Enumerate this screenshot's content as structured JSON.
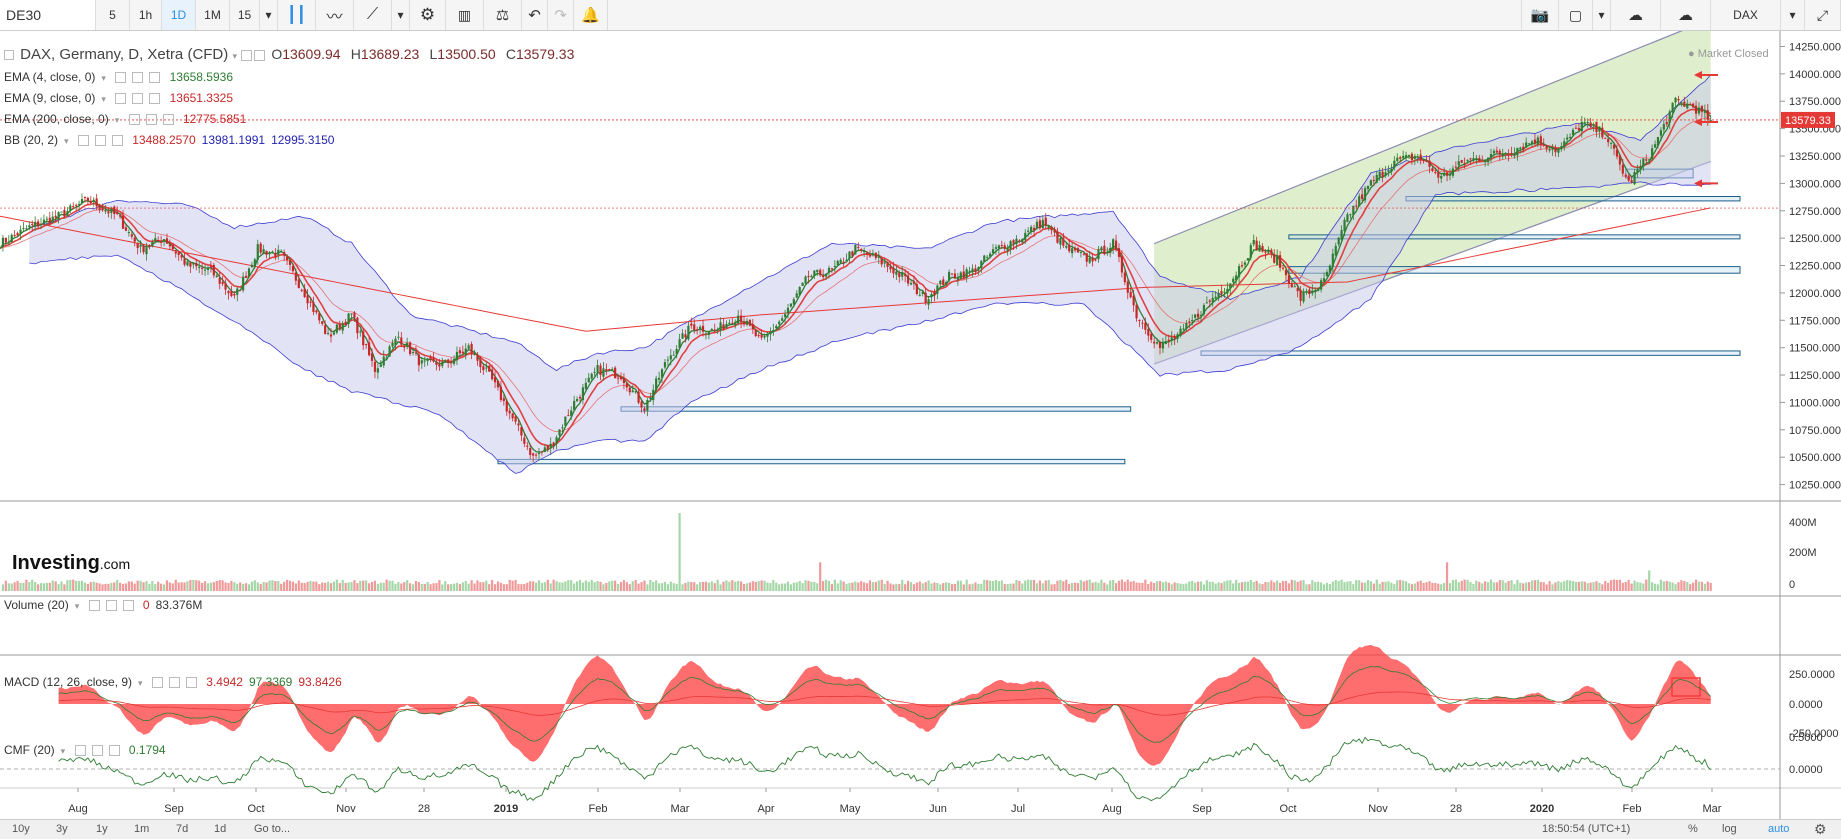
{
  "toolbar": {
    "symbol": "DE30",
    "intervals": [
      "5",
      "1h",
      "1D",
      "1M",
      "15"
    ],
    "active_interval": "1D",
    "right_symbol": "DAX"
  },
  "legend": {
    "main": {
      "name": "DAX, Germany, D, Xetra (CFD)",
      "open": "13609.94",
      "high": "13689.23",
      "low": "13500.50",
      "close": "13579.33",
      "o_label": "O",
      "h_label": "H",
      "l_label": "L",
      "c_label": "C"
    },
    "ema4": {
      "label": "EMA (4, close, 0)",
      "value": "13658.5936"
    },
    "ema9": {
      "label": "EMA (9, close, 0)",
      "value": "13651.3325"
    },
    "ema200": {
      "label": "EMA (200, close, 0)",
      "value": "12775.5851"
    },
    "bb": {
      "label": "BB (20, 2)",
      "mid": "13488.2570",
      "upper": "13981.1991",
      "lower": "12995.3150"
    },
    "volume": {
      "label": "Volume (20)",
      "v1": "0",
      "v2": "83.376M"
    },
    "macd": {
      "label": "MACD (12, 26, close, 9)",
      "v1": "3.4942",
      "v2": "97.3369",
      "v3": "93.8426"
    },
    "cmf": {
      "label": "CMF (20)",
      "value": "0.1794"
    }
  },
  "market_status": "Market Closed",
  "logo": {
    "brand": "Investing",
    "suffix": ".com"
  },
  "colors": {
    "up": "#2e7d32",
    "down": "#c62828",
    "bb": "#3c3cd0",
    "ema_fast": "#e04040",
    "ema_slow": "#2e7d32",
    "channel": "#8bc34a",
    "zone": "#1a5f8a"
  },
  "chart_data": {
    "type": "candlestick",
    "price_axis": {
      "ticks": [
        "14250.000",
        "14000.000",
        "13750.000",
        "13500.000",
        "13250.000",
        "13000.000",
        "12750.000",
        "12500.000",
        "12250.000",
        "12000.000",
        "11750.000",
        "11500.000",
        "11250.000",
        "11000.000",
        "10750.000",
        "10500.000",
        "10250.000"
      ],
      "range": [
        10100,
        14300
      ],
      "last_price": "13579.33"
    },
    "time_axis": [
      "Aug",
      "Sep",
      "Oct",
      "Nov",
      "28",
      "2019",
      "Feb",
      "Mar",
      "Apr",
      "May",
      "Jun",
      "Jul",
      "Aug",
      "Sep",
      "Oct",
      "Nov",
      "28",
      "2020",
      "Feb",
      "Mar"
    ],
    "close_path": [
      [
        0,
        12450
      ],
      [
        10,
        12600
      ],
      [
        20,
        12700
      ],
      [
        30,
        12850
      ],
      [
        40,
        12700
      ],
      [
        48,
        12400
      ],
      [
        56,
        12500
      ],
      [
        64,
        12250
      ],
      [
        72,
        12200
      ],
      [
        80,
        11950
      ],
      [
        88,
        12400
      ],
      [
        96,
        12350
      ],
      [
        104,
        12000
      ],
      [
        112,
        11600
      ],
      [
        120,
        11800
      ],
      [
        128,
        11300
      ],
      [
        136,
        11600
      ],
      [
        144,
        11350
      ],
      [
        152,
        11350
      ],
      [
        160,
        11500
      ],
      [
        168,
        11200
      ],
      [
        176,
        10800
      ],
      [
        182,
        10500
      ],
      [
        188,
        10600
      ],
      [
        196,
        11000
      ],
      [
        204,
        11300
      ],
      [
        212,
        11250
      ],
      [
        220,
        10950
      ],
      [
        228,
        11400
      ],
      [
        236,
        11700
      ],
      [
        244,
        11650
      ],
      [
        252,
        11800
      ],
      [
        260,
        11550
      ],
      [
        268,
        11800
      ],
      [
        276,
        12150
      ],
      [
        284,
        12200
      ],
      [
        292,
        12400
      ],
      [
        300,
        12300
      ],
      [
        308,
        12150
      ],
      [
        316,
        11950
      ],
      [
        324,
        12150
      ],
      [
        332,
        12200
      ],
      [
        340,
        12400
      ],
      [
        348,
        12500
      ],
      [
        356,
        12650
      ],
      [
        364,
        12400
      ],
      [
        372,
        12300
      ],
      [
        380,
        12450
      ],
      [
        388,
        11800
      ],
      [
        396,
        11500
      ],
      [
        404,
        11650
      ],
      [
        412,
        11900
      ],
      [
        420,
        12100
      ],
      [
        428,
        12450
      ],
      [
        436,
        12300
      ],
      [
        444,
        11950
      ],
      [
        452,
        12100
      ],
      [
        460,
        12700
      ],
      [
        468,
        13000
      ],
      [
        476,
        13200
      ],
      [
        484,
        13250
      ],
      [
        492,
        13050
      ],
      [
        500,
        13200
      ],
      [
        508,
        13250
      ],
      [
        516,
        13300
      ],
      [
        524,
        13400
      ],
      [
        532,
        13300
      ],
      [
        540,
        13550
      ],
      [
        548,
        13450
      ],
      [
        556,
        13000
      ],
      [
        564,
        13300
      ],
      [
        572,
        13750
      ],
      [
        578,
        13700
      ],
      [
        584,
        13579
      ]
    ],
    "ema200_path": [
      [
        0,
        12700
      ],
      [
        200,
        11650
      ],
      [
        260,
        11800
      ],
      [
        390,
        12050
      ],
      [
        460,
        12100
      ],
      [
        584,
        12776
      ]
    ],
    "bb_upper_path": [
      [
        0,
        12500
      ],
      [
        40,
        12850
      ],
      [
        64,
        12800
      ],
      [
        80,
        12600
      ],
      [
        104,
        12700
      ],
      [
        120,
        12450
      ],
      [
        140,
        11800
      ],
      [
        176,
        11550
      ],
      [
        190,
        11300
      ],
      [
        204,
        11450
      ],
      [
        220,
        11500
      ],
      [
        252,
        12000
      ],
      [
        284,
        12450
      ],
      [
        316,
        12400
      ],
      [
        340,
        12650
      ],
      [
        360,
        12700
      ],
      [
        380,
        12750
      ],
      [
        396,
        12150
      ],
      [
        420,
        11950
      ],
      [
        444,
        12150
      ],
      [
        468,
        13100
      ],
      [
        500,
        13350
      ],
      [
        540,
        13550
      ],
      [
        560,
        13400
      ],
      [
        584,
        13981
      ]
    ],
    "bb_lower_path": [
      [
        0,
        12250
      ],
      [
        40,
        12350
      ],
      [
        64,
        12000
      ],
      [
        88,
        11600
      ],
      [
        104,
        11300
      ],
      [
        120,
        11100
      ],
      [
        150,
        10900
      ],
      [
        176,
        10350
      ],
      [
        190,
        10550
      ],
      [
        204,
        10650
      ],
      [
        220,
        10650
      ],
      [
        236,
        11000
      ],
      [
        260,
        11300
      ],
      [
        290,
        11600
      ],
      [
        310,
        11700
      ],
      [
        340,
        11900
      ],
      [
        370,
        11900
      ],
      [
        396,
        11250
      ],
      [
        420,
        11300
      ],
      [
        444,
        11500
      ],
      [
        468,
        11950
      ],
      [
        490,
        12900
      ],
      [
        530,
        12950
      ],
      [
        560,
        13000
      ],
      [
        584,
        12995
      ]
    ],
    "channel": {
      "lower": [
        [
          394,
          11350
        ],
        [
          584,
          13200
        ]
      ],
      "upper": [
        [
          394,
          12450
        ],
        [
          584,
          14500
        ]
      ]
    },
    "zones": [
      {
        "x0": 212,
        "x1": 386,
        "y0": 10920,
        "y1": 10960
      },
      {
        "x0": 170,
        "x1": 384,
        "y0": 10440,
        "y1": 10480
      },
      {
        "x0": 410,
        "x1": 594,
        "y0": 11430,
        "y1": 11470
      },
      {
        "x0": 440,
        "x1": 594,
        "y0": 12180,
        "y1": 12240
      },
      {
        "x0": 440,
        "x1": 594,
        "y0": 12500,
        "y1": 12530
      },
      {
        "x0": 480,
        "x1": 594,
        "y0": 12840,
        "y1": 12880
      },
      {
        "x0": 555,
        "x1": 578,
        "y0": 13050,
        "y1": 13130
      }
    ],
    "volume_axis": [
      "400M",
      "200M",
      "0"
    ],
    "macd_axis": [
      "250.0000",
      "0.0000",
      "-250.0000"
    ],
    "cmf_axis": [
      "0.5000",
      "0.0000"
    ]
  },
  "bottom": {
    "ranges": [
      "10y",
      "3y",
      "1y",
      "1m",
      "7d",
      "1d"
    ],
    "goto": "Go to...",
    "time": "18:50:54 (UTC+1)",
    "pct": "%",
    "log": "log",
    "auto": "auto"
  }
}
